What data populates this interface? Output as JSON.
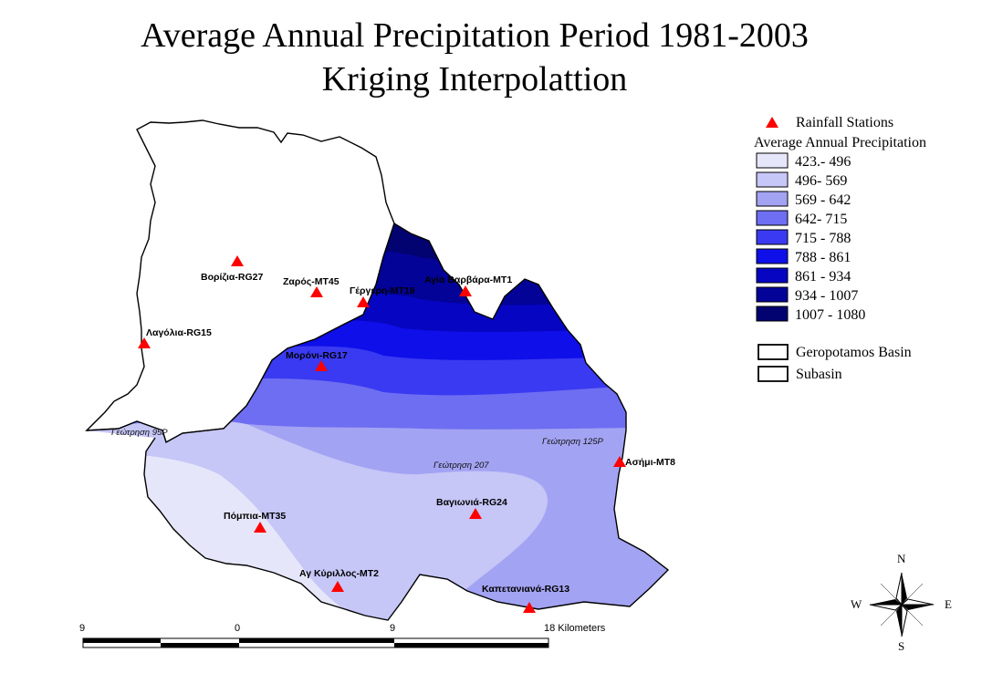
{
  "title": {
    "line1": "Average Annual Precipitation Period 1981-2003",
    "line2": "Kriging  Interpolattion"
  },
  "stations": [
    {
      "name": "Βορίζια-RG27"
    },
    {
      "name": "Ζαρός-MT45"
    },
    {
      "name": "Γέργερη-MT18"
    },
    {
      "name": "Αγία Βαρβάρα-MT1"
    },
    {
      "name": "Λαγόλια-RG15"
    },
    {
      "name": "Μορόνι-RG17"
    },
    {
      "name": "Ασήμι-MT8"
    },
    {
      "name": "Βαγιωνιά-RG24"
    },
    {
      "name": "Πόμπια-MT35"
    },
    {
      "name": "Αγ Κύριλλος-MT2"
    },
    {
      "name": "Καπετανιανά-RG13"
    }
  ],
  "observations": [
    {
      "name": "Γεώτρηση 95Ρ"
    },
    {
      "name": "Γεώτρηση 125Ρ"
    },
    {
      "name": "Γεώτρηση 207"
    }
  ],
  "legend": {
    "stations_label": "Rainfall Stations",
    "precip_title": "Average Annual Precipitation",
    "classes": [
      {
        "label": "423.- 496",
        "color": "#e6e6fa"
      },
      {
        "label": "496- 569",
        "color": "#c6c6f7"
      },
      {
        "label": "569 - 642",
        "color": "#a3a3f3"
      },
      {
        "label": "642- 715",
        "color": "#6e6ef2"
      },
      {
        "label": "715 - 788",
        "color": "#3a3af2"
      },
      {
        "label": "788 - 861",
        "color": "#0f0fea"
      },
      {
        "label": "861 - 934",
        "color": "#0606c2"
      },
      {
        "label": "934 - 1007",
        "color": "#030397"
      },
      {
        "label": "1007 - 1080",
        "color": "#020270"
      }
    ],
    "basin_label": "Geropotamos Basin",
    "subbasin_label": "Subasin"
  },
  "scale_bar": {
    "ticks": [
      "9",
      "0",
      "9",
      "18 Kilometers"
    ]
  },
  "compass": {
    "n": "N",
    "s": "S",
    "e": "E",
    "w": "W"
  },
  "colors": {
    "station_marker": "#ff0000",
    "outline": "#000000"
  }
}
